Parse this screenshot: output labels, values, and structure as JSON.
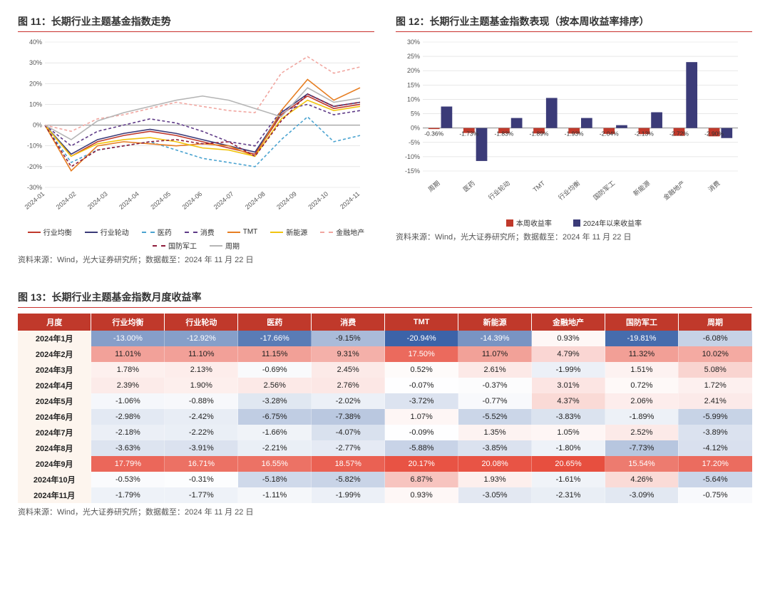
{
  "fig11": {
    "title": "图 11：长期行业主题基金指数走势",
    "source": "资料来源：Wind，光大证券研究所；数据截至：2024 年 11 月 22 日",
    "type": "line",
    "ylim": [
      -30,
      40
    ],
    "ytick_step": 10,
    "x_categories": [
      "2024-01",
      "2024-02",
      "2024-03",
      "2024-04",
      "2024-05",
      "2024-06",
      "2024-07",
      "2024-08",
      "2024-09",
      "2024-10",
      "2024-11"
    ],
    "grid_color": "#d9d9d9",
    "axis_color": "#888",
    "label_fontsize": 9,
    "series": [
      {
        "name": "行业均衡",
        "color": "#c0392b",
        "dash": "",
        "data": [
          0,
          -15,
          -8,
          -5,
          -3,
          -5,
          -8,
          -11,
          -14,
          5,
          14,
          8,
          10
        ]
      },
      {
        "name": "行业轮动",
        "color": "#3b3b78",
        "dash": "",
        "data": [
          0,
          -14,
          -7,
          -4,
          -2,
          -4,
          -7,
          -10,
          -13,
          6,
          15,
          9,
          11
        ]
      },
      {
        "name": "医药",
        "color": "#4aa3d0",
        "dash": "4 3",
        "data": [
          0,
          -18,
          -12,
          -10,
          -8,
          -12,
          -16,
          -18,
          -20,
          -7,
          4,
          -8,
          -5
        ]
      },
      {
        "name": "消费",
        "color": "#5e3a87",
        "dash": "4 3",
        "data": [
          0,
          -10,
          -3,
          0,
          3,
          1,
          -3,
          -8,
          -10,
          7,
          10,
          5,
          7
        ]
      },
      {
        "name": "TMT",
        "color": "#e67e22",
        "dash": "",
        "data": [
          0,
          -22,
          -10,
          -8,
          -9,
          -10,
          -9,
          -10,
          -15,
          7,
          22,
          12,
          18
        ]
      },
      {
        "name": "新能源",
        "color": "#f1c40f",
        "dash": "",
        "data": [
          0,
          -15,
          -9,
          -7,
          -6,
          -8,
          -11,
          -12,
          -15,
          3,
          12,
          7,
          9
        ]
      },
      {
        "name": "金融地产",
        "color": "#f1a6a0",
        "dash": "4 3",
        "data": [
          0,
          -3,
          3,
          5,
          8,
          11,
          9,
          7,
          6,
          25,
          33,
          25,
          28
        ]
      },
      {
        "name": "国防军工",
        "color": "#8e1b3a",
        "dash": "4 3",
        "data": [
          0,
          -20,
          -12,
          -10,
          -8,
          -7,
          -9,
          -8,
          -15,
          2,
          15,
          9,
          11
        ]
      },
      {
        "name": "周期",
        "color": "#b5b5b5",
        "dash": "",
        "data": [
          0,
          -7,
          2,
          6,
          9,
          12,
          14,
          12,
          8,
          4,
          18,
          11,
          13
        ]
      }
    ]
  },
  "fig12": {
    "title": "图 12：长期行业主题基金指数表现（按本周收益率排序）",
    "source": "资料来源：Wind，光大证券研究所；数据截至：2024 年 11 月 22 日",
    "type": "grouped-bar",
    "ylim": [
      -15,
      30
    ],
    "ytick_step": 5,
    "grid_color": "#d9d9d9",
    "axis_color": "#888",
    "label_fontsize": 9,
    "bar_width": 0.32,
    "categories": [
      "周期",
      "医药",
      "行业轮动",
      "TMT",
      "行业均衡",
      "国防军工",
      "新能源",
      "金融地产",
      "消费"
    ],
    "series": [
      {
        "name": "本周收益率",
        "color": "#c0392b",
        "labels": [
          "-0.36%",
          "-1.73%",
          "-1.83%",
          "-1.89%",
          "-1.93%",
          "-2.04%",
          "-2.13%",
          "-2.72%",
          "-2.90%"
        ],
        "data": [
          -0.36,
          -1.73,
          -1.83,
          -1.89,
          -1.93,
          -2.04,
          -2.13,
          -2.72,
          -2.9
        ]
      },
      {
        "name": "2024年以来收益率",
        "color": "#3b3b78",
        "data": [
          7.5,
          -11.5,
          3.5,
          10.5,
          3.5,
          1.0,
          5.5,
          23.0,
          -3.5
        ]
      }
    ]
  },
  "fig13": {
    "title": "图 13：长期行业主题基金指数月度收益率",
    "source": "资料来源：Wind，光大证券研究所；数据截至：2024 年 11 月 22 日",
    "type": "heatmap-table",
    "header_bg": "#c0392b",
    "header_fg": "#ffffff",
    "row_label_bg": "#fdf5ee",
    "color_scale": {
      "neg": "#3b63a8",
      "zero": "#ffffff",
      "pos": "#e74c3c",
      "min": -21,
      "max": 21
    },
    "columns": [
      "月度",
      "行业均衡",
      "行业轮动",
      "医药",
      "消费",
      "TMT",
      "新能源",
      "金融地产",
      "国防军工",
      "周期"
    ],
    "rows": [
      {
        "label": "2024年1月",
        "vals": [
          -13.0,
          -12.92,
          -17.66,
          -9.15,
          -20.94,
          -14.39,
          0.93,
          -19.81,
          -6.08
        ]
      },
      {
        "label": "2024年2月",
        "vals": [
          11.01,
          11.1,
          11.15,
          9.31,
          17.5,
          11.07,
          4.79,
          11.32,
          10.02
        ]
      },
      {
        "label": "2024年3月",
        "vals": [
          1.78,
          2.13,
          -0.69,
          2.45,
          0.52,
          2.61,
          -1.99,
          1.51,
          5.08
        ]
      },
      {
        "label": "2024年4月",
        "vals": [
          2.39,
          1.9,
          2.56,
          2.76,
          -0.07,
          -0.37,
          3.01,
          0.72,
          1.72
        ]
      },
      {
        "label": "2024年5月",
        "vals": [
          -1.06,
          -0.88,
          -3.28,
          -2.02,
          -3.72,
          -0.77,
          4.37,
          2.06,
          2.41
        ]
      },
      {
        "label": "2024年6月",
        "vals": [
          -2.98,
          -2.42,
          -6.75,
          -7.38,
          1.07,
          -5.52,
          -3.83,
          -1.89,
          -5.99
        ]
      },
      {
        "label": "2024年7月",
        "vals": [
          -2.18,
          -2.22,
          -1.66,
          -4.07,
          -0.09,
          1.35,
          1.05,
          2.52,
          -3.89
        ]
      },
      {
        "label": "2024年8月",
        "vals": [
          -3.63,
          -3.91,
          -2.21,
          -2.77,
          -5.88,
          -3.85,
          -1.8,
          -7.73,
          -4.12
        ]
      },
      {
        "label": "2024年9月",
        "vals": [
          17.79,
          16.71,
          16.55,
          18.57,
          20.17,
          20.08,
          20.65,
          15.54,
          17.2
        ]
      },
      {
        "label": "2024年10月",
        "vals": [
          -0.53,
          -0.31,
          -5.18,
          -5.82,
          6.87,
          1.93,
          -1.61,
          4.26,
          -5.64
        ]
      },
      {
        "label": "2024年11月",
        "vals": [
          -1.79,
          -1.77,
          -1.11,
          -1.99,
          0.93,
          -3.05,
          -2.31,
          -3.09,
          -0.75
        ]
      }
    ]
  }
}
